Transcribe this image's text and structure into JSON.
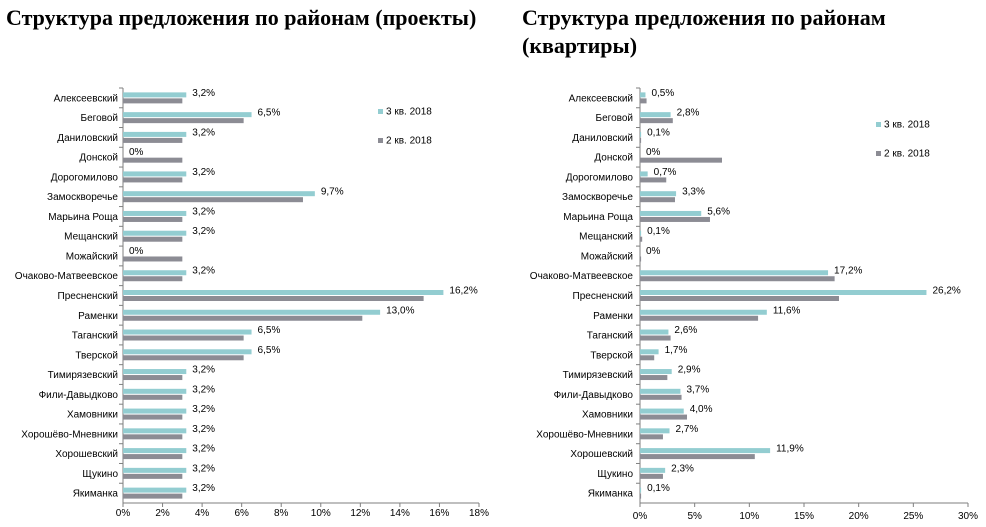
{
  "colors": {
    "q3": "#93CDD1",
    "q2": "#8C8C94",
    "axis": "#7F7F7F"
  },
  "chart_data": [
    {
      "type": "bar",
      "orientation": "horizontal",
      "title": "Структура предложения по районам (проекты)",
      "categories": [
        "Алексеевский",
        "Беговой",
        "Даниловский",
        "Донской",
        "Дорогомилово",
        "Замоскворечье",
        "Марьина Роща",
        "Мещанский",
        "Можайский",
        "Очаково-Матвеевское",
        "Пресненский",
        "Раменки",
        "Таганский",
        "Тверской",
        "Тимирязевский",
        "Фили-Давыдково",
        "Хамовники",
        "Хорошёво-Мневники",
        "Хорошевский",
        "Щукино",
        "Якиманка"
      ],
      "series": [
        {
          "name": "3 кв. 2018",
          "values": [
            3.2,
            6.5,
            3.2,
            0,
            3.2,
            9.7,
            3.2,
            3.2,
            0,
            3.2,
            16.2,
            13.0,
            6.5,
            6.5,
            3.2,
            3.2,
            3.2,
            3.2,
            3.2,
            3.2,
            3.2
          ]
        },
        {
          "name": "2 кв. 2018",
          "values": [
            3.0,
            6.1,
            3.0,
            3.0,
            3.0,
            9.1,
            3.0,
            3.0,
            3.0,
            3.0,
            15.2,
            12.1,
            6.1,
            6.1,
            3.0,
            3.0,
            3.0,
            3.0,
            3.0,
            3.0,
            3.0
          ]
        }
      ],
      "data_labels": [
        "3,2%",
        "6,5%",
        "3,2%",
        "0%",
        "3,2%",
        "9,7%",
        "3,2%",
        "3,2%",
        "0%",
        "3,2%",
        "16,2%",
        "13,0%",
        "6,5%",
        "6,5%",
        "3,2%",
        "3,2%",
        "3,2%",
        "3,2%",
        "3,2%",
        "3,2%",
        "3,2%"
      ],
      "xlim": [
        0,
        18
      ],
      "x_ticks": [
        "0%",
        "2%",
        "4%",
        "6%",
        "8%",
        "10%",
        "12%",
        "14%",
        "16%",
        "18%"
      ],
      "legend": "top-right",
      "grid": false
    },
    {
      "type": "bar",
      "orientation": "horizontal",
      "title": "Структура предложения по районам (квартиры)",
      "categories": [
        "Алексеевский",
        "Беговой",
        "Даниловский",
        "Донской",
        "Дорогомилово",
        "Замоскворечье",
        "Марьина Роща",
        "Мещанский",
        "Можайский",
        "Очаково-Матвеевское",
        "Пресненский",
        "Раменки",
        "Таганский",
        "Тверской",
        "Тимирязевский",
        "Фили-Давыдково",
        "Хамовники",
        "Хорошёво-Мневники",
        "Хорошевский",
        "Щукино",
        "Якиманка"
      ],
      "series": [
        {
          "name": "3 кв. 2018",
          "values": [
            0.5,
            2.8,
            0.1,
            0,
            0.7,
            3.3,
            5.6,
            0.1,
            0,
            17.2,
            26.2,
            11.6,
            2.6,
            1.7,
            2.9,
            3.7,
            4.0,
            2.7,
            11.9,
            2.3,
            0.1
          ]
        },
        {
          "name": "2 кв. 2018",
          "values": [
            0.6,
            3.0,
            0.1,
            7.5,
            2.4,
            3.2,
            6.4,
            0.2,
            0.1,
            17.8,
            18.2,
            10.8,
            2.8,
            1.3,
            2.5,
            3.8,
            4.3,
            2.1,
            10.5,
            2.1,
            0.1
          ]
        }
      ],
      "data_labels": [
        "0,5%",
        "2,8%",
        "0,1%",
        "0%",
        "0,7%",
        "3,3%",
        "5,6%",
        "0,1%",
        "0%",
        "17,2%",
        "26,2%",
        "11,6%",
        "2,6%",
        "1,7%",
        "2,9%",
        "3,7%",
        "4,0%",
        "2,7%",
        "11,9%",
        "2,3%",
        "0,1%"
      ],
      "xlim": [
        0,
        30
      ],
      "x_ticks": [
        "0%",
        "5%",
        "10%",
        "15%",
        "20%",
        "25%",
        "30%"
      ],
      "legend": "top-right",
      "grid": false
    }
  ]
}
